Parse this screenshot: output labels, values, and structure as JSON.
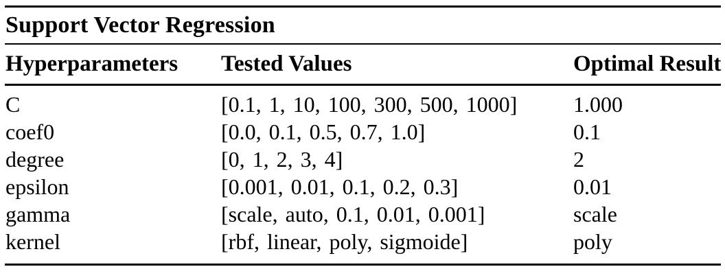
{
  "chart_data": {
    "type": "table",
    "title": "Support Vector Regression",
    "columns": [
      "Hyperparameters",
      "Tested Values",
      "Optimal Result"
    ],
    "rows": [
      [
        "C",
        "[0.1, 1, 10, 100, 300, 500, 1000]",
        "1.000"
      ],
      [
        "coef0",
        "[0.0, 0.1, 0.5, 0.7, 1.0]",
        "0.1"
      ],
      [
        "degree",
        "[0, 1, 2, 3, 4]",
        "2"
      ],
      [
        "epsilon",
        "[0.001, 0.01, 0.1, 0.2, 0.3]",
        "0.01"
      ],
      [
        "gamma",
        "[scale, auto, 0.1, 0.01, 0.001]",
        "scale"
      ],
      [
        "kernel",
        "[rbf, linear, poly, sigmoide]",
        "poly"
      ]
    ]
  },
  "colors": {
    "text": "#000000",
    "background": "#ffffff",
    "rule": "#000000"
  }
}
